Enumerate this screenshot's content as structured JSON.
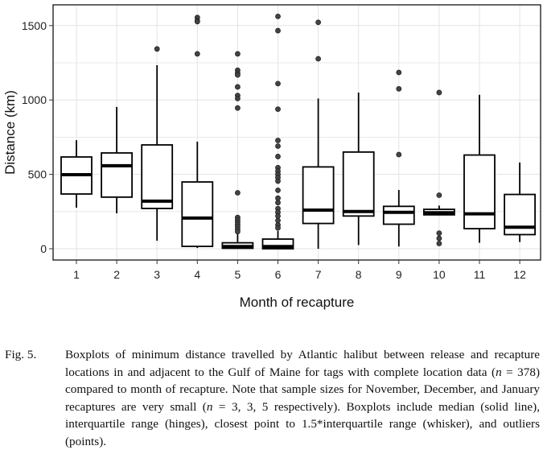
{
  "chart_data": {
    "type": "box",
    "title": "",
    "xlabel": "Month of recapture",
    "ylabel": "Distance (km)",
    "ylim": [
      -75,
      1620
    ],
    "yticks": [
      0,
      500,
      1000,
      1500
    ],
    "ytick_labels": [
      "0",
      "500",
      "1000",
      "1500"
    ],
    "categories": [
      "1",
      "2",
      "3",
      "4",
      "5",
      "6",
      "7",
      "8",
      "9",
      "10",
      "11",
      "12"
    ],
    "grid": true,
    "boxes": [
      {
        "month": "1",
        "whisker_low": 276,
        "q1": 368,
        "median": 498,
        "q3": 617,
        "whisker_high": 730,
        "outliers": []
      },
      {
        "month": "2",
        "whisker_low": 238,
        "q1": 347,
        "median": 558,
        "q3": 644,
        "whisker_high": 953,
        "outliers": []
      },
      {
        "month": "3",
        "whisker_low": 54,
        "q1": 271,
        "median": 320,
        "q3": 698,
        "whisker_high": 1234,
        "outliers": [
          1343
        ]
      },
      {
        "month": "4",
        "whisker_low": 5,
        "q1": 16,
        "median": 206,
        "q3": 449,
        "whisker_high": 720,
        "outliers": [
          1554,
          1532,
          1527,
          1310
        ]
      },
      {
        "month": "5",
        "whisker_low": 0,
        "q1": 3,
        "median": 15,
        "q3": 40,
        "whisker_high": 100,
        "outliers": [
          1310,
          1200,
          1180,
          1168,
          1088,
          1030,
          1010,
          946,
          376,
          210,
          195,
          180,
          165,
          150,
          132,
          115
        ]
      },
      {
        "month": "6",
        "whisker_low": 0,
        "q1": 0,
        "median": 15,
        "q3": 65,
        "whisker_high": 120,
        "outliers": [
          1562,
          1466,
          1110,
          938,
          728,
          690,
          620,
          545,
          522,
          500,
          478,
          455,
          393,
          340,
          310,
          270,
          245,
          220,
          190,
          160,
          140
        ]
      },
      {
        "month": "7",
        "whisker_low": 0,
        "q1": 170,
        "median": 260,
        "q3": 550,
        "whisker_high": 1010,
        "outliers": [
          1522,
          1277
        ]
      },
      {
        "month": "8",
        "whisker_low": 25,
        "q1": 220,
        "median": 250,
        "q3": 650,
        "whisker_high": 1050,
        "outliers": []
      },
      {
        "month": "9",
        "whisker_low": 15,
        "q1": 165,
        "median": 245,
        "q3": 285,
        "whisker_high": 395,
        "outliers": [
          1185,
          1075,
          633
        ]
      },
      {
        "month": "10",
        "whisker_low": 225,
        "q1": 228,
        "median": 242,
        "q3": 265,
        "whisker_high": 290,
        "outliers": [
          1050,
          360,
          105,
          70,
          35
        ]
      },
      {
        "month": "11",
        "whisker_low": 40,
        "q1": 135,
        "median": 235,
        "q3": 630,
        "whisker_high": 1035,
        "outliers": []
      },
      {
        "month": "12",
        "whisker_low": 45,
        "q1": 95,
        "median": 145,
        "q3": 365,
        "whisker_high": 580,
        "outliers": []
      }
    ]
  },
  "caption": {
    "label": "Fig. 5.",
    "text_parts": [
      "Boxplots of minimum distance travelled by Atlantic halibut between release and recapture locations in and adjacent to the Gulf of Maine for tags with complete location data (",
      "n",
      " = 378) compared to month of recapture. Note that sample sizes for November, December, and January recaptures are very small (",
      "n",
      " = 3, 3, 5 respectively). Boxplots include median (solid line), interquartile range (hinges), closest point to 1.5*interquartile range (whisker), and outliers (points)."
    ]
  },
  "colors": {
    "box_stroke": "#000000",
    "outlier_fill": "#444444",
    "grid": "#e3e3e3",
    "panel_border": "#000000"
  }
}
